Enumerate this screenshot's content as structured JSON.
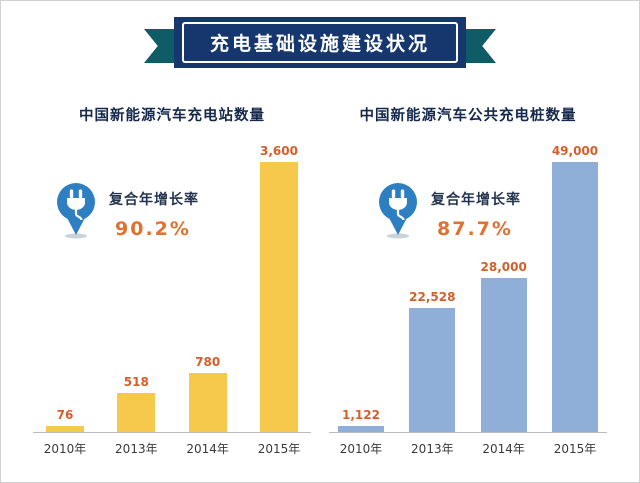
{
  "banner": {
    "title": "充电基础设施建设状况"
  },
  "colors": {
    "banner_bg": "#16366e",
    "ribbon_tail": "#0d5c66",
    "chart_title": "#15284b",
    "value_label": "#d45f2a",
    "percent": "#e0712e",
    "axis_line": "#bcbcbc",
    "frame_border": "#d0d0d0",
    "pin_blue": "#2e7fc2"
  },
  "chart_data": [
    {
      "type": "bar",
      "title": "中国新能源汽车充电站数量",
      "categories": [
        "2010年",
        "2013年",
        "2014年",
        "2015年"
      ],
      "values": [
        76,
        518,
        780,
        3600
      ],
      "value_labels": [
        "76",
        "518",
        "780",
        "3,600"
      ],
      "ylim": [
        0,
        3600
      ],
      "bar_color": "#f6c84c",
      "grid": false,
      "annotation": {
        "icon": "plug-pin-icon",
        "label": "复合年增长率",
        "value": "90.2%"
      }
    },
    {
      "type": "bar",
      "title": "中国新能源汽车公共充电桩数量",
      "categories": [
        "2010年",
        "2013年",
        "2014年",
        "2015年"
      ],
      "values": [
        1122,
        22528,
        28000,
        49000
      ],
      "value_labels": [
        "1,122",
        "22,528",
        "28,000",
        "49,000"
      ],
      "ylim": [
        0,
        49000
      ],
      "bar_color": "#8fafd9",
      "grid": false,
      "annotation": {
        "icon": "plug-pin-icon",
        "label": "复合年增长率",
        "value": "87.7%"
      }
    }
  ]
}
